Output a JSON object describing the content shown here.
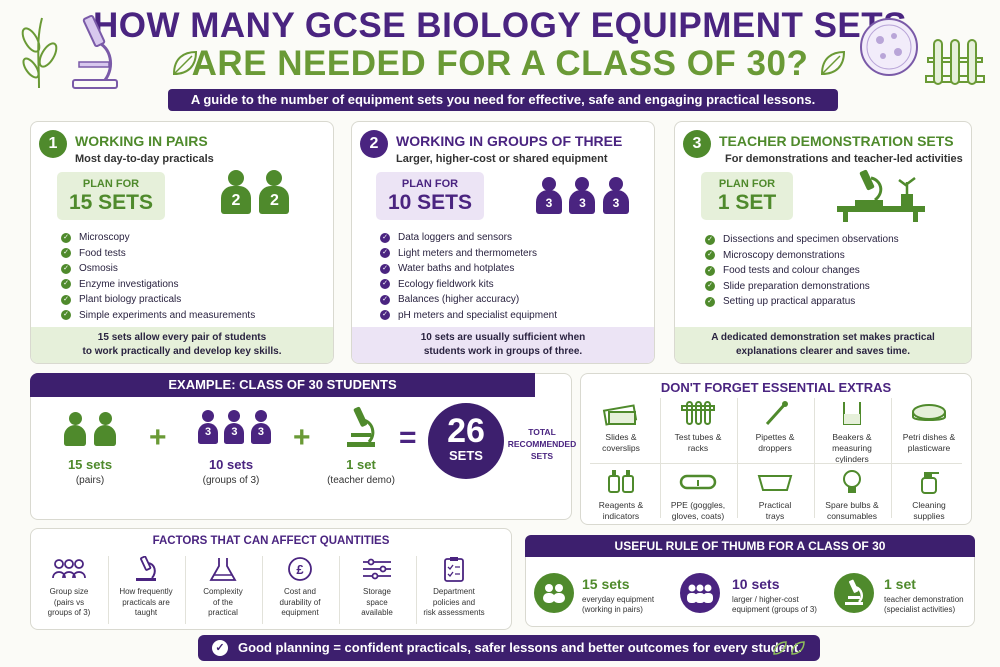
{
  "header": {
    "title_line1": "HOW MANY GCSE BIOLOGY EQUIPMENT SETS",
    "title_line2": "ARE NEEDED FOR A CLASS OF 30?",
    "subtitle": "A guide to the number of equipment sets you need for effective, safe and engaging practical lessons."
  },
  "cards": [
    {
      "number": "1",
      "heading": "WORKING IN PAIRS",
      "sub": "Most day-to-day practicals",
      "plan_label": "PLAN FOR",
      "plan_value": "15 SETS",
      "people_labels": [
        "2",
        "2"
      ],
      "items": [
        "Microscopy",
        "Food tests",
        "Osmosis",
        "Enzyme investigations",
        "Plant biology practicals",
        "Simple experiments and measurements"
      ],
      "footer_line1": "15 sets allow every pair of students",
      "footer_line2": "to work practically and develop key skills."
    },
    {
      "number": "2",
      "heading": "WORKING IN GROUPS OF THREE",
      "sub": "Larger, higher-cost or shared equipment",
      "plan_label": "PLAN FOR",
      "plan_value": "10 SETS",
      "people_labels": [
        "3",
        "3",
        "3"
      ],
      "items": [
        "Data loggers and sensors",
        "Light meters and thermometers",
        "Water baths and hotplates",
        "Ecology fieldwork kits",
        "Balances (higher accuracy)",
        "pH meters and specialist equipment"
      ],
      "footer_line1": "10 sets are usually sufficient when",
      "footer_line2": "students work in groups of three."
    },
    {
      "number": "3",
      "heading": "TEACHER DEMONSTRATION SETS",
      "sub": "For demonstrations and teacher-led activities",
      "plan_label": "PLAN FOR",
      "plan_value": "1 SET",
      "items": [
        "Dissections and specimen observations",
        "Microscopy demonstrations",
        "Food tests and colour changes",
        "Slide preparation demonstrations",
        "Setting up practical apparatus"
      ],
      "footer_line1": "A dedicated demonstration set makes practical",
      "footer_line2": "explanations clearer and saves time."
    }
  ],
  "example": {
    "heading": "EXAMPLE: CLASS OF 30 STUDENTS",
    "pairs_value": "15 sets",
    "pairs_label": "(pairs)",
    "pairs_people": [
      "",
      ""
    ],
    "groups_value": "10 sets",
    "groups_label": "(groups of 3)",
    "groups_people": [
      "3",
      "3",
      "3"
    ],
    "demo_value": "1 set",
    "demo_label": "(teacher demo)",
    "plus": "+",
    "equals": "=",
    "total_number": "26",
    "total_unit": "SETS",
    "total_caption_1": "TOTAL",
    "total_caption_2": "RECOMMENDED",
    "total_caption_3": "SETS"
  },
  "extras": {
    "heading": "DON'T FORGET ESSENTIAL EXTRAS",
    "items": [
      {
        "l1": "Slides &",
        "l2": "coverslips",
        "l3": "",
        "icon": "slides-icon"
      },
      {
        "l1": "Test tubes &",
        "l2": "racks",
        "l3": "",
        "icon": "test-tube-rack-icon"
      },
      {
        "l1": "Pipettes &",
        "l2": "droppers",
        "l3": "",
        "icon": "pipette-icon"
      },
      {
        "l1": "Beakers &",
        "l2": "measuring",
        "l3": "cylinders",
        "icon": "beaker-icon"
      },
      {
        "l1": "Petri dishes &",
        "l2": "plasticware",
        "l3": "",
        "icon": "petri-dish-icon"
      },
      {
        "l1": "Reagents &",
        "l2": "indicators",
        "l3": "",
        "icon": "reagent-bottles-icon"
      },
      {
        "l1": "PPE (goggles,",
        "l2": "gloves, coats)",
        "l3": "",
        "icon": "goggles-icon"
      },
      {
        "l1": "Practical",
        "l2": "trays",
        "l3": "",
        "icon": "tray-icon"
      },
      {
        "l1": "Spare bulbs &",
        "l2": "consumables",
        "l3": "",
        "icon": "bulb-icon"
      },
      {
        "l1": "Cleaning",
        "l2": "supplies",
        "l3": "",
        "icon": "spray-bottle-icon"
      }
    ]
  },
  "factors": {
    "heading": "FACTORS THAT CAN AFFECT QUANTITIES",
    "items": [
      {
        "l1": "Group size",
        "l2": "(pairs vs",
        "l3": "groups of 3)",
        "icon": "group-icon"
      },
      {
        "l1": "How frequently",
        "l2": "practicals are",
        "l3": "taught",
        "icon": "microscope-icon"
      },
      {
        "l1": "Complexity",
        "l2": "of the",
        "l3": "practical",
        "icon": "flask-icon"
      },
      {
        "l1": "Cost and",
        "l2": "durability of",
        "l3": "equipment",
        "icon": "pound-coin-icon"
      },
      {
        "l1": "Storage",
        "l2": "space",
        "l3": "available",
        "icon": "sliders-icon"
      },
      {
        "l1": "Department",
        "l2": "policies and",
        "l3": "risk assessments",
        "icon": "clipboard-icon"
      }
    ]
  },
  "rule": {
    "heading": "USEFUL RULE OF THUMB FOR A CLASS OF 30",
    "items": [
      {
        "value": "15 sets",
        "d1": "everyday equipment",
        "d2": "(working in pairs)"
      },
      {
        "value": "10 sets",
        "d1": "larger / higher-cost",
        "d2": "equipment (groups of 3)"
      },
      {
        "value": "1 set",
        "d1": "teacher demonstration",
        "d2": "(specialist activities)"
      }
    ]
  },
  "footer": {
    "check": "✓",
    "text": "Good planning = confident practicals, safer lessons and better outcomes for every student."
  },
  "colors": {
    "purple": "#4a2480",
    "dark_purple": "#3d1f6e",
    "green": "#4f8a2c",
    "light_green": "#e6f0da",
    "light_purple": "#ece4f5"
  }
}
